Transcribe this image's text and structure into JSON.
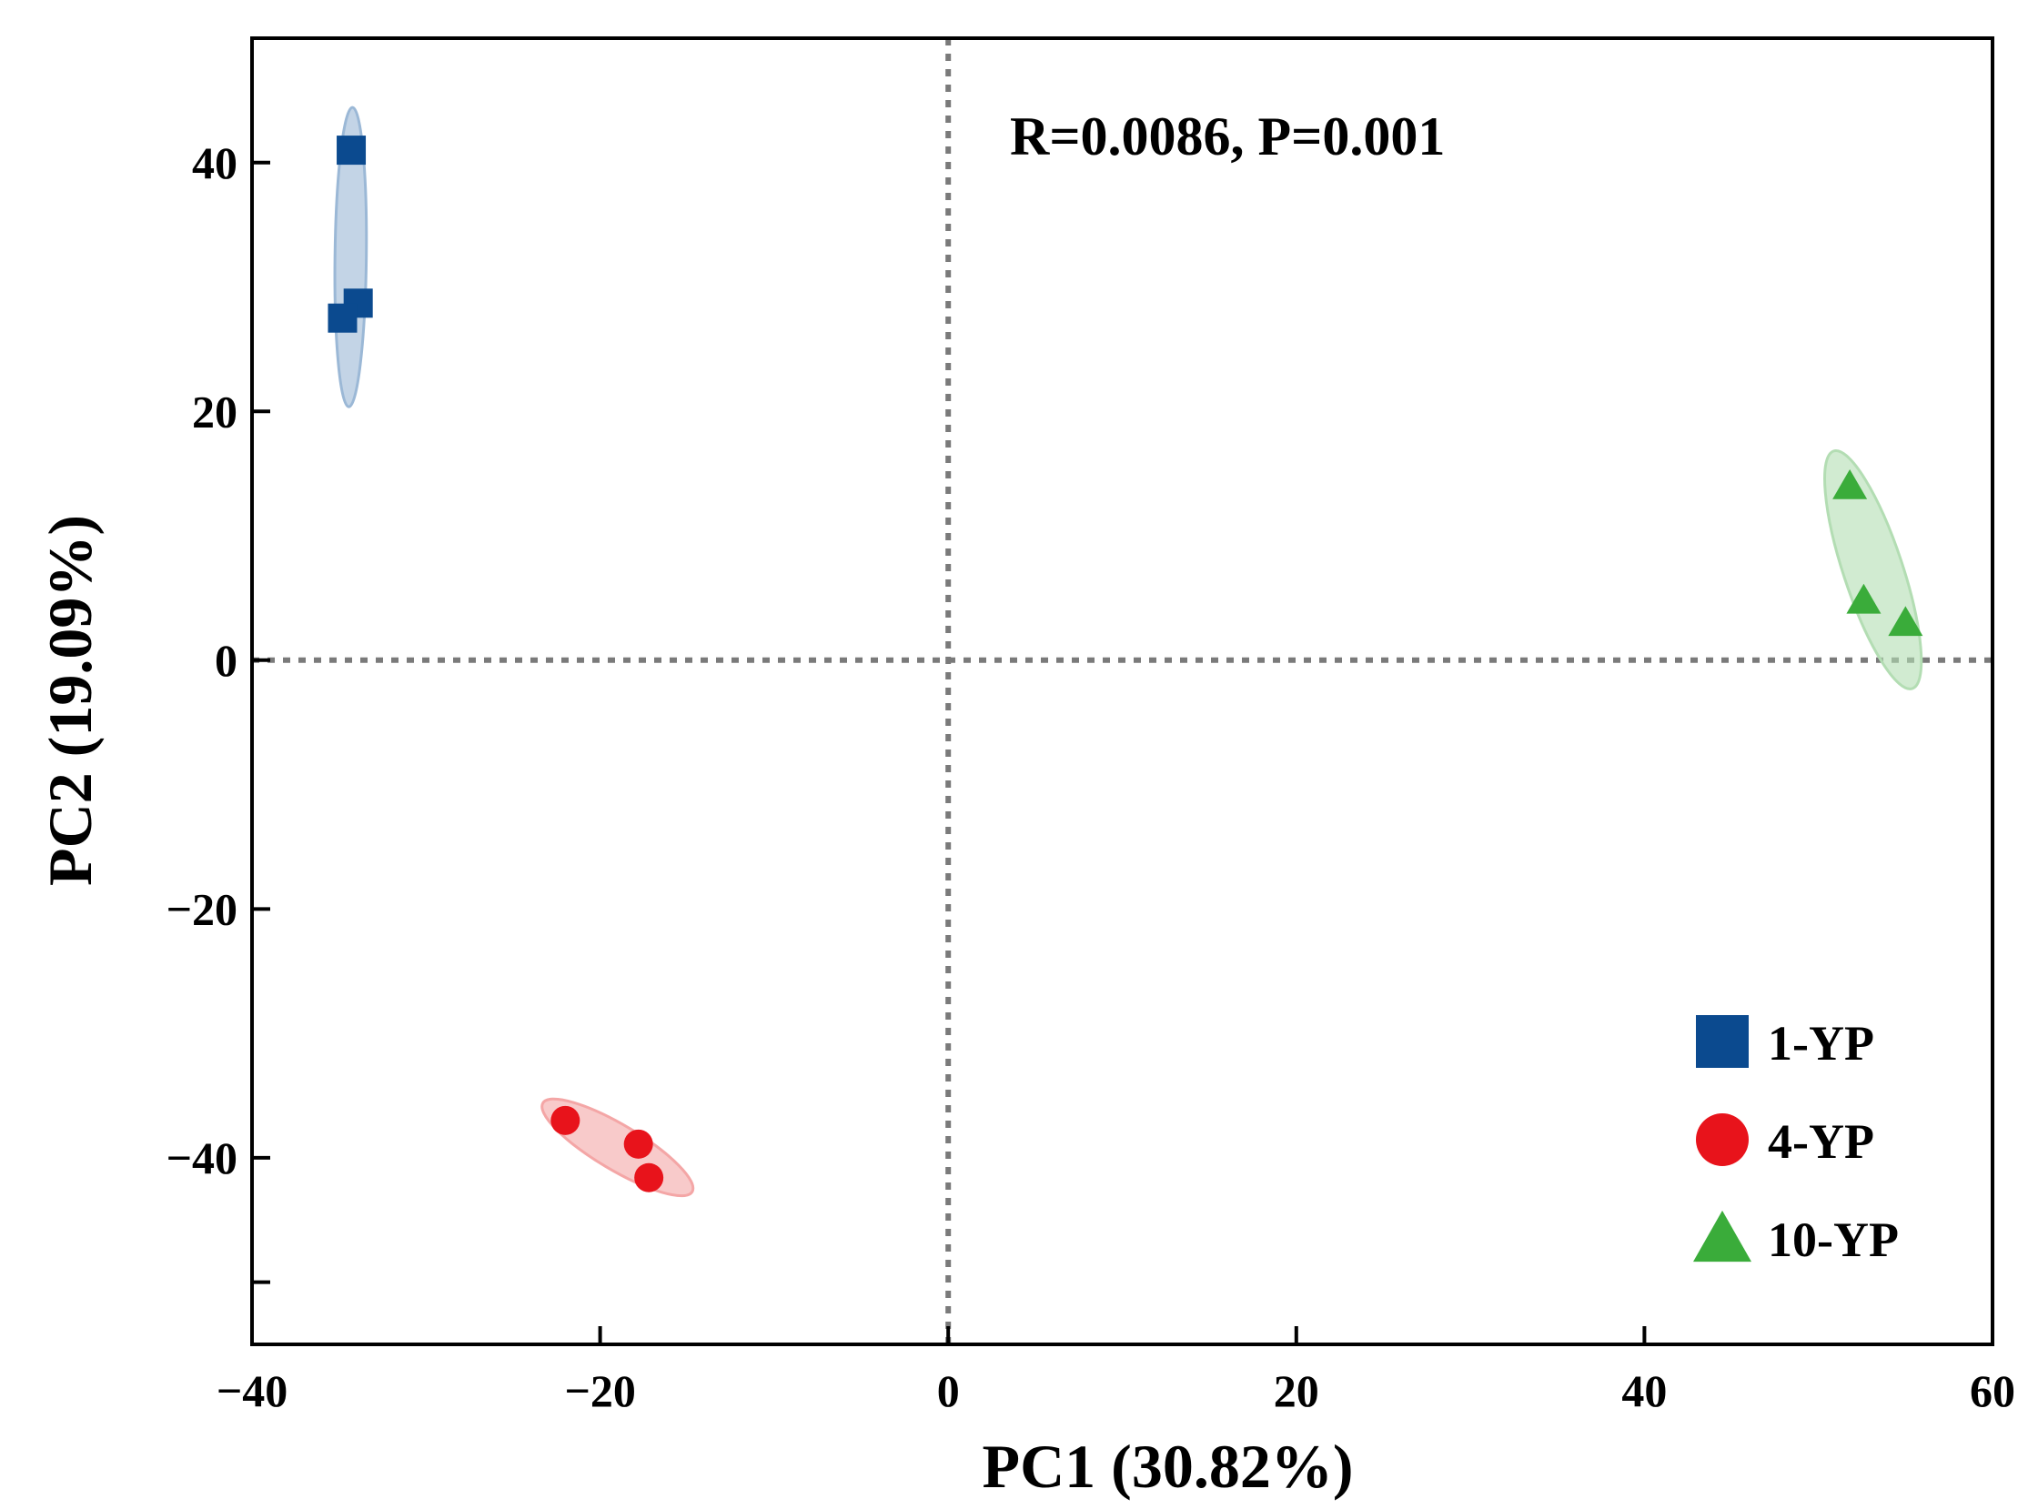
{
  "chart_data": {
    "type": "scatter",
    "title": "",
    "xlabel": "PC1 (30.82%)",
    "ylabel": "PC2 (19.09%)",
    "xlim": [
      -40,
      60
    ],
    "ylim": [
      -55,
      50
    ],
    "x_ticks": [
      -40,
      -20,
      0,
      20,
      40,
      60
    ],
    "x_tick_labels": [
      "−40",
      "−20",
      "0",
      "20",
      "40",
      "60"
    ],
    "y_ticks": [
      -50,
      -40,
      -20,
      0,
      20,
      40
    ],
    "y_tick_labels": [
      "",
      "−40",
      "−20",
      "0",
      "20",
      "40"
    ],
    "grid": false,
    "reference_lines": {
      "x": 0,
      "y": 0,
      "style": "dotted"
    },
    "annotation": "R=0.0086, P=0.001",
    "legend_position": "bottom-right",
    "series": [
      {
        "name": "1-YP",
        "marker": "square",
        "color": "#0b4a8f",
        "fill": "#9bb8d6",
        "points": [
          [
            -34.3,
            41.0
          ],
          [
            -33.9,
            28.7
          ],
          [
            -34.8,
            27.5
          ]
        ]
      },
      {
        "name": "4-YP",
        "marker": "circle",
        "color": "#e8131b",
        "fill": "#f4a6a6",
        "points": [
          [
            -22.0,
            -37.0
          ],
          [
            -17.8,
            -38.9
          ],
          [
            -17.2,
            -41.6
          ]
        ]
      },
      {
        "name": "10-YP",
        "marker": "triangle",
        "color": "#3aac3a",
        "fill": "#b3ddb3",
        "points": [
          [
            51.8,
            14.0
          ],
          [
            52.6,
            4.8
          ],
          [
            55.0,
            3.0
          ]
        ]
      }
    ]
  }
}
